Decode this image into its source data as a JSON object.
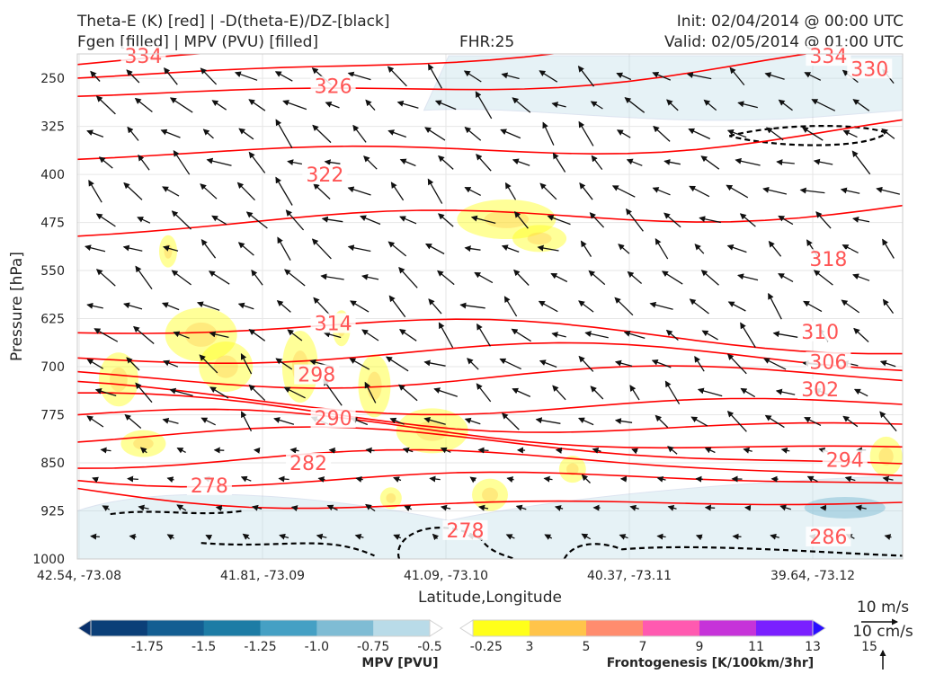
{
  "header": {
    "title_left_1": "Theta-E (K) [red] | -D(theta-E)/DZ-[black]",
    "title_left_2": "Fgen [filled] | MPV (PVU) [filled]",
    "fhr": "FHR:25",
    "init": "Init: 02/04/2014 @ 00:00 UTC",
    "valid": "Valid: 02/05/2014 @ 01:00 UTC"
  },
  "chart_data": {
    "type": "cross-section",
    "xlabel": "Latitude,Longitude",
    "ylabel": "Pressure [hPa]",
    "x_ticks": [
      "42.54, -73.08",
      "41.81, -73.09",
      "41.09, -73.10",
      "40.37, -73.11",
      "39.64, -73.12"
    ],
    "y_ticks": [
      250,
      325,
      400,
      475,
      550,
      625,
      700,
      775,
      850,
      925,
      1000
    ],
    "ylim": [
      1000,
      212
    ],
    "grid": true,
    "theta_e_contours": [
      {
        "value": 278,
        "pressure_at_left": 890
      },
      {
        "value": 282,
        "pressure_at_left": 858
      },
      {
        "value": 286,
        "pressure_at_left": 835
      },
      {
        "value": 290,
        "pressure_at_left": 808
      },
      {
        "value": 294,
        "pressure_at_left": 785
      },
      {
        "value": 298,
        "pressure_at_left": 760
      },
      {
        "value": 302,
        "pressure_at_left": 735
      },
      {
        "value": 306,
        "pressure_at_left": 705
      },
      {
        "value": 310,
        "pressure_at_left": 675
      },
      {
        "value": 314,
        "pressure_at_left": 640
      },
      {
        "value": 318,
        "pressure_at_left": 500
      },
      {
        "value": 322,
        "pressure_at_left": 385
      },
      {
        "value": 326,
        "pressure_at_left": 280
      },
      {
        "value": 330,
        "pressure_at_left": 240
      },
      {
        "value": 334,
        "pressure_at_left": 215
      }
    ],
    "contour_labels": [
      {
        "text": "334",
        "x_frac": 0.08,
        "p": 215
      },
      {
        "text": "326",
        "x_frac": 0.31,
        "p": 262
      },
      {
        "text": "322",
        "x_frac": 0.3,
        "p": 400
      },
      {
        "text": "314",
        "x_frac": 0.31,
        "p": 632
      },
      {
        "text": "298",
        "x_frac": 0.29,
        "p": 712
      },
      {
        "text": "290",
        "x_frac": 0.31,
        "p": 780
      },
      {
        "text": "282",
        "x_frac": 0.28,
        "p": 850
      },
      {
        "text": "278",
        "x_frac": 0.16,
        "p": 885
      },
      {
        "text": "278",
        "x_frac": 0.47,
        "p": 955
      },
      {
        "text": "334",
        "x_frac": 0.91,
        "p": 215
      },
      {
        "text": "330",
        "x_frac": 0.96,
        "p": 235
      },
      {
        "text": "318",
        "x_frac": 0.91,
        "p": 532
      },
      {
        "text": "310",
        "x_frac": 0.9,
        "p": 645
      },
      {
        "text": "306",
        "x_frac": 0.91,
        "p": 692
      },
      {
        "text": "302",
        "x_frac": 0.9,
        "p": 735
      },
      {
        "text": "294",
        "x_frac": 0.93,
        "p": 845
      },
      {
        "text": "286",
        "x_frac": 0.91,
        "p": 965
      }
    ],
    "mpv_colorbar": {
      "label": "MPV [PVU]",
      "ticks": [
        "-1.75",
        "-1.5",
        "-1.25",
        "-1.0",
        "-0.75",
        "-0.5",
        "-0.25"
      ],
      "colors": [
        "#08306b",
        "#0b3f78",
        "#135e92",
        "#1d7ca5",
        "#45a0c4",
        "#7fbcd4",
        "#b9dbe8",
        "#ffffff"
      ]
    },
    "fgen_colorbar": {
      "label": "Frontogenesis [K/100km/3hr]",
      "ticks": [
        "3",
        "5",
        "7",
        "9",
        "11",
        "13",
        "15"
      ],
      "colors": [
        "#ffffff",
        "#ffff1a",
        "#ffc44a",
        "#ff8c6e",
        "#ff5ab0",
        "#c633d9",
        "#7a1fff",
        "#2a0fff"
      ]
    },
    "reference_vectors": {
      "horizontal": "10 m/s",
      "vertical": "10 cm/s"
    },
    "theta_e_color": "#ff0000",
    "label_color": "#ff5555"
  }
}
